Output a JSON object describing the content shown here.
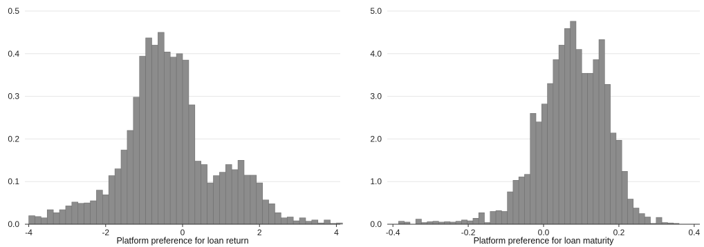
{
  "chart_data": [
    {
      "type": "bar",
      "xlabel": "Platform preference for loan return",
      "ylabel": "",
      "xlim": [
        -4.1,
        4.1
      ],
      "ylim": [
        0,
        0.5
      ],
      "xticks": [
        -4,
        -2,
        0,
        2,
        4
      ],
      "xtick_labels": [
        "-4",
        "-2",
        "0",
        "2",
        "4"
      ],
      "yticks": [
        0,
        0.1,
        0.2,
        0.3,
        0.4,
        0.5
      ],
      "ytick_labels": [
        "0.0",
        "0.1",
        "0.2",
        "0.3",
        "0.4",
        "0.5"
      ],
      "grid": true,
      "bin_start": -4.0,
      "bin_width": 0.16,
      "values": [
        0.02,
        0.018,
        0.015,
        0.034,
        0.027,
        0.034,
        0.043,
        0.052,
        0.049,
        0.05,
        0.055,
        0.08,
        0.069,
        0.114,
        0.13,
        0.174,
        0.22,
        0.298,
        0.394,
        0.437,
        0.42,
        0.45,
        0.404,
        0.392,
        0.4,
        0.385,
        0.28,
        0.148,
        0.14,
        0.097,
        0.114,
        0.122,
        0.14,
        0.128,
        0.15,
        0.115,
        0.115,
        0.097,
        0.057,
        0.048,
        0.027,
        0.015,
        0.017,
        0.008,
        0.015,
        0.007,
        0.01,
        0.003,
        0.01,
        0.002,
        0.003
      ]
    },
    {
      "type": "bar",
      "xlabel": "Platform preference for loan maturity",
      "ylabel": "",
      "xlim": [
        -0.415,
        0.415
      ],
      "ylim": [
        0,
        5.0
      ],
      "xticks": [
        -0.4,
        -0.2,
        0,
        0.2,
        0.4
      ],
      "xtick_labels": [
        "-0.4",
        "-0.2",
        "0.0",
        "0.2",
        "0.4"
      ],
      "yticks": [
        0,
        1,
        2,
        3,
        4,
        5
      ],
      "ytick_labels": [
        "0.0",
        "1.0",
        "2.0",
        "3.0",
        "4.0",
        "5.0"
      ],
      "grid": true,
      "bin_start": -0.385,
      "bin_width": 0.0152,
      "values": [
        0.07,
        0.05,
        0.0,
        0.12,
        0.04,
        0.06,
        0.07,
        0.05,
        0.06,
        0.05,
        0.07,
        0.1,
        0.08,
        0.14,
        0.27,
        0.04,
        0.3,
        0.32,
        0.3,
        0.76,
        1.03,
        1.11,
        1.17,
        2.6,
        2.4,
        2.82,
        3.3,
        3.86,
        4.2,
        4.59,
        4.76,
        4.1,
        3.54,
        3.54,
        3.86,
        4.33,
        3.28,
        2.14,
        1.97,
        1.24,
        0.59,
        0.38,
        0.25,
        0.17,
        0.02,
        0.16,
        0.04,
        0.03,
        0.02,
        0.0,
        0.0
      ]
    }
  ]
}
